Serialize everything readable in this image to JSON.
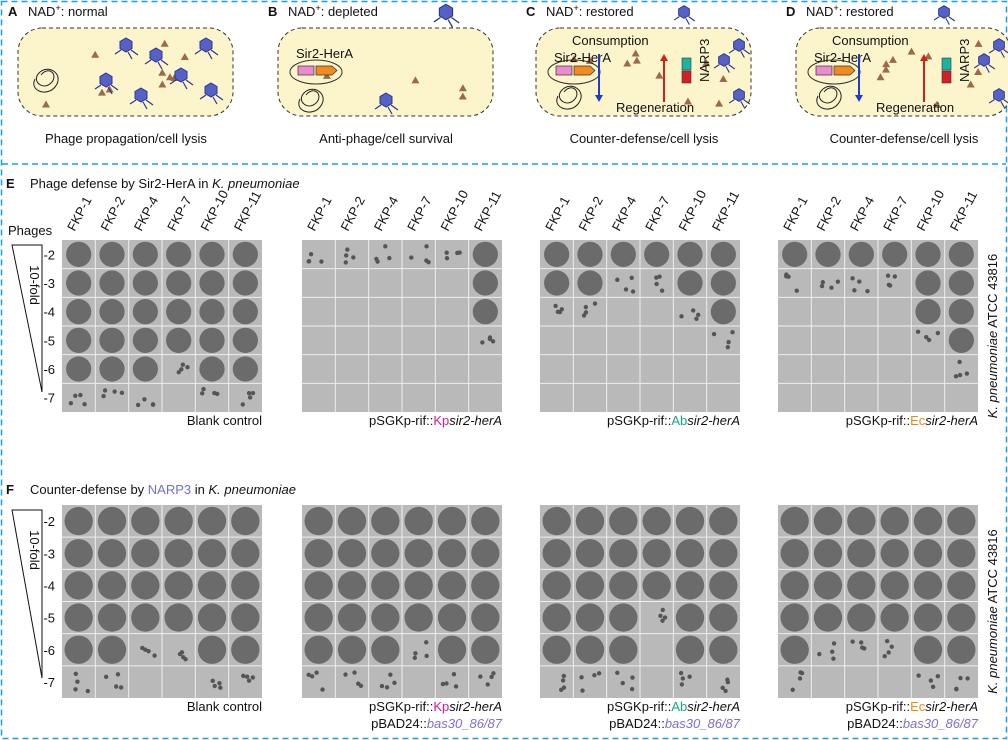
{
  "top_panels": [
    {
      "letter": "A",
      "nad": "NAD",
      "sup": "+",
      "state": ": normal",
      "caption": "Phage propagation/cell lysis"
    },
    {
      "letter": "B",
      "nad": "NAD",
      "sup": "+",
      "state": ": depleted",
      "caption": "Anti-phage/cell survival",
      "protein": "Sir2-HerA"
    },
    {
      "letter": "C",
      "nad": "NAD",
      "sup": "+",
      "state": ": restored",
      "caption": "Counter-defense/cell lysis",
      "protein": "Sir2-HerA",
      "consumption": "Consumption",
      "regeneration": "Regeneration",
      "narp": "NARP3"
    },
    {
      "letter": "D",
      "nad": "NAD",
      "sup": "+",
      "state": ": restored",
      "caption": "Counter-defense/cell lysis",
      "protein": "Sir2-HerA",
      "consumption": "Consumption",
      "regeneration": "Regeneration",
      "narp": "NARP3"
    }
  ],
  "panel_e": {
    "letter": "E",
    "title": "Phage defense by Sir2-HerA in ",
    "species": "K. pneumoniae",
    "phages_label": "Phages",
    "fold": "10-fold",
    "phages": [
      "FKP-1",
      "FKP-2",
      "FKP-4",
      "FKP-7",
      "FKP-10",
      "FKP-11"
    ],
    "dilutions": [
      "-2",
      "-3",
      "-4",
      "-5",
      "-6",
      "-7"
    ],
    "strain_species": "K. pneumoniae",
    "strain": " ATCC 43816",
    "plates": [
      {
        "label": "Blank control"
      },
      {
        "prefix": "pSGKp-rif::",
        "tag": "Kp",
        "gene": "sir2-herA"
      },
      {
        "prefix": "pSGKp-rif::",
        "tag": "Ab",
        "gene": "sir2-herA"
      },
      {
        "prefix": "pSGKp-rif::",
        "tag": "Ec",
        "gene": "sir2-herA"
      }
    ]
  },
  "panel_f": {
    "letter": "F",
    "title": "Counter-defense by ",
    "highlight": "NARP3",
    "title_mid": " in ",
    "species": "K. pneumoniae",
    "fold": "10-fold",
    "dilutions": [
      "-2",
      "-3",
      "-4",
      "-5",
      "-6",
      "-7"
    ],
    "strain_species": "K. pneumoniae",
    "strain": " ATCC 43816",
    "plates": [
      {
        "label": "Blank control"
      },
      {
        "prefix": "pSGKp-rif::",
        "tag": "Kp",
        "gene": "sir2-herA",
        "line2_prefix": "pBAD24::",
        "line2_gene": "bas30_86/87"
      },
      {
        "prefix": "pSGKp-rif::",
        "tag": "Ab",
        "gene": "sir2-herA",
        "line2_prefix": "pBAD24::",
        "line2_gene": "bas30_86/87"
      },
      {
        "prefix": "pSGKp-rif::",
        "tag": "Ec",
        "gene": "sir2-herA",
        "line2_prefix": "pBAD24::",
        "line2_gene": "bas30_86/87"
      }
    ]
  }
}
